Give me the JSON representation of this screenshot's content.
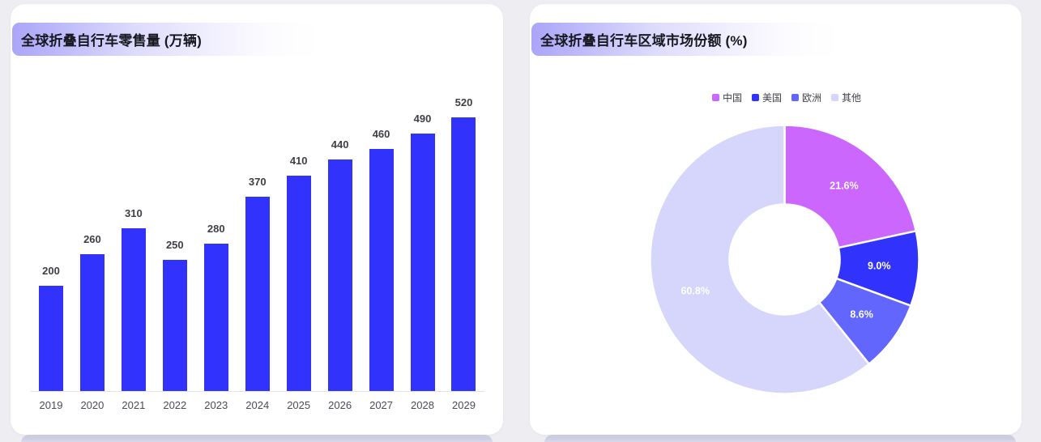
{
  "page": {
    "background": "#eeeef2",
    "accent": "#aba5f8"
  },
  "cards": {
    "bar_card": {
      "title": "全球折叠自行车零售量 (万辆)"
    },
    "pie_card": {
      "title": "全球折叠自行车区域市场份额 (%)"
    }
  },
  "chart_data": [
    {
      "type": "bar",
      "title": "全球折叠自行车零售量 (万辆)",
      "categories": [
        "2019",
        "2020",
        "2021",
        "2022",
        "2023",
        "2024",
        "2025",
        "2026",
        "2027",
        "2028",
        "2029"
      ],
      "values": [
        200,
        260,
        310,
        250,
        280,
        370,
        410,
        440,
        460,
        490,
        520
      ],
      "bar_color": "#3133fc",
      "value_label_color": "#3e3f46",
      "axis_label_color": "#4a4c55",
      "xlabel": "",
      "ylabel": "",
      "ylim": [
        0,
        550
      ],
      "grid": false,
      "legend": false
    },
    {
      "type": "pie",
      "title": "全球折叠自行车区域市场份额 (%)",
      "donut": true,
      "inner_radius_ratio": 0.41,
      "legend_position": "top",
      "series": [
        {
          "name": "中国",
          "value": 21.6,
          "label": "21.6%",
          "color": "#cb67fd"
        },
        {
          "name": "美国",
          "value": 9.0,
          "label": "9.0%",
          "color": "#3133fc"
        },
        {
          "name": "欧洲",
          "value": 8.6,
          "label": "8.6%",
          "color": "#6366fd"
        },
        {
          "name": "其他",
          "value": 60.8,
          "label": "60.8%",
          "color": "#d6d5fb"
        }
      ]
    }
  ]
}
